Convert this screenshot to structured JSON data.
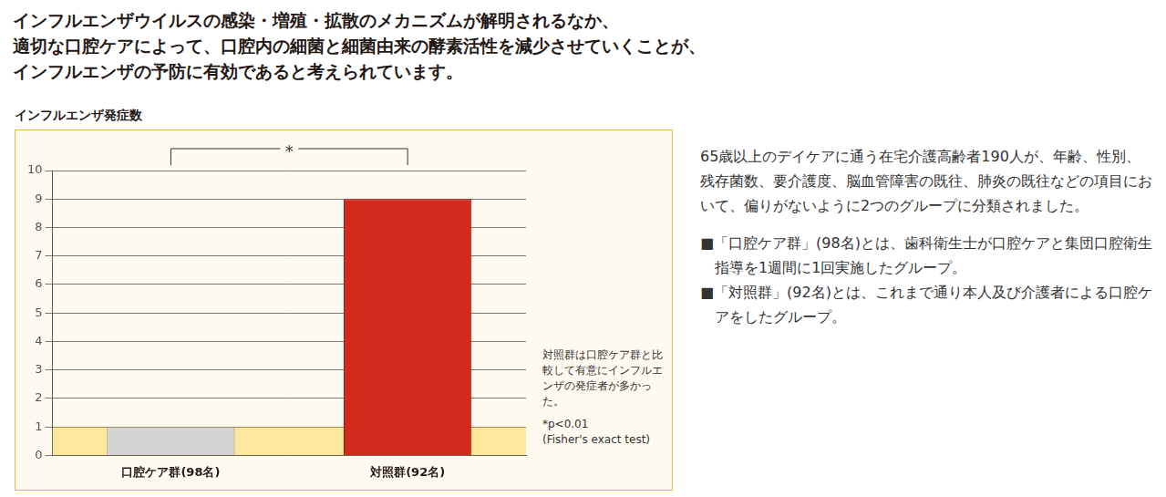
{
  "headline": [
    "インフルエンザウイルスの感染・増殖・拡散のメカニズムが解明されるなか、",
    "適切な口腔ケアによって、口腔内の細菌と細菌由来の酵素活性を減少させていくことが、",
    "インフルエンザの予防に有効であると考えられています。"
  ],
  "chart_data": {
    "type": "bar",
    "title": "インフルエンザ発症数",
    "categories": [
      "口腔ケア群(98名)",
      "対照群(92名)"
    ],
    "values": [
      1,
      9
    ],
    "colors": [
      "#d4d4d4",
      "#d42a1e"
    ],
    "ylim": [
      0,
      10
    ],
    "yticks": [
      0,
      1,
      2,
      3,
      4,
      5,
      6,
      7,
      8,
      9,
      10
    ],
    "grid": true,
    "significance_mark": "*",
    "note": "対照群は口腔ケア群と比較して有意にインフルエンザの発症者が多かった。",
    "significance_note": [
      "*p<0.01",
      "(Fisher's exact test)"
    ]
  },
  "description": {
    "paragraph": "65歳以上のデイケアに通う在宅介護高齢者190人が、年齢、性別、残存菌数、要介護度、脳血管障害の既往、肺炎の既往などの項目において、偏りがないように2つのグループに分類されました。",
    "bullets": [
      "■「口腔ケア群」(98名)とは、歯科衛生士が口腔ケアと集団口腔衛生指導を1週間に1回実施したグループ。",
      "■「対照群」(92名)とは、これまで通り本人及び介護者による口腔ケアをしたグループ。"
    ]
  }
}
